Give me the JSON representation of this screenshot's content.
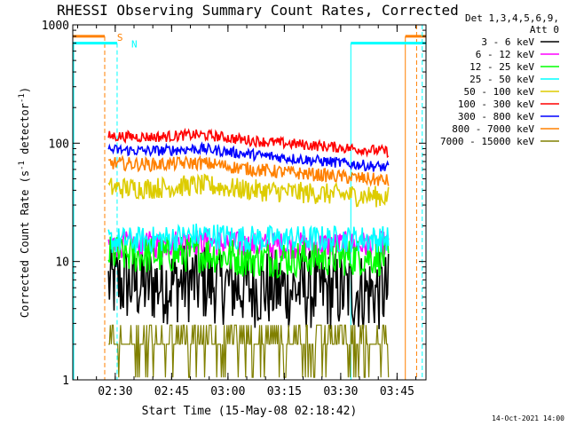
{
  "chart_data": {
    "type": "line",
    "title": "RHESSI Observing Summary Count Rates, Corrected",
    "xlabel": "Start Time (15-May-08 02:18:42)",
    "ylabel_main": "Corrected Count Rate (s",
    "ylabel_sup1": "-1",
    "ylabel_mid": " detector",
    "ylabel_sup2": "-1",
    "ylabel_end": ")",
    "y_scale": "log",
    "ylim": [
      1,
      1000
    ],
    "xlim_minutes": [
      0,
      94
    ],
    "y_ticks": [
      {
        "value": 1,
        "label": "1"
      },
      {
        "value": 10,
        "label": "10"
      },
      {
        "value": 100,
        "label": "100"
      },
      {
        "value": 1000,
        "label": "1000"
      }
    ],
    "x_ticks": [
      {
        "minutes": 11.3,
        "label": "02:30"
      },
      {
        "minutes": 26.3,
        "label": "02:45"
      },
      {
        "minutes": 41.3,
        "label": "03:00"
      },
      {
        "minutes": 56.3,
        "label": "03:15"
      },
      {
        "minutes": 71.3,
        "label": "03:30"
      },
      {
        "minutes": 86.3,
        "label": "03:45"
      }
    ],
    "legend": {
      "header": [
        "Det 1,3,4,5,6,9,",
        "Att 0"
      ],
      "position": "top-right"
    },
    "data_window_minutes": [
      9.5,
      84.0
    ],
    "series": [
      {
        "name": "3 - 6 keV",
        "color": "#000000",
        "start": 6.5,
        "mid": 6.0,
        "end": 5.5,
        "noise": 0.15
      },
      {
        "name": "6 - 12 keV",
        "color": "#ff00ff",
        "start": 14.0,
        "mid": 13.5,
        "end": 14.0,
        "noise": 0.05
      },
      {
        "name": "12 - 25 keV",
        "color": "#00ff00",
        "start": 11.5,
        "mid": 10.5,
        "end": 11.0,
        "noise": 0.07
      },
      {
        "name": "25 - 50 keV",
        "color": "#00ffff",
        "start": 15.0,
        "mid": 15.5,
        "end": 15.5,
        "noise": 0.05
      },
      {
        "name": "50 - 100 keV",
        "color": "#ddcc00",
        "start": 42.0,
        "mid": 40.0,
        "end": 35.0,
        "noise": 0.04
      },
      {
        "name": "100 - 300 keV",
        "color": "#ff0000",
        "start": 115.0,
        "mid": 105.0,
        "end": 85.0,
        "noise": 0.02
      },
      {
        "name": "300 - 800 keV",
        "color": "#0000ff",
        "start": 88.0,
        "mid": 80.0,
        "end": 62.0,
        "noise": 0.02
      },
      {
        "name": "800 - 7000 keV",
        "color": "#ff8000",
        "start": 68.0,
        "mid": 60.0,
        "end": 48.0,
        "noise": 0.025
      },
      {
        "name": "7000 - 15000 keV",
        "color": "#808000",
        "start": 2.0,
        "mid": 2.0,
        "end": 2.0,
        "noise": 0.0
      }
    ],
    "markers": [
      {
        "label": "S",
        "color": "#ff8000",
        "minutes": 8.0,
        "style": "dashed",
        "level": 800
      },
      {
        "label": "N",
        "color": "#00ffff",
        "minutes": 11.8,
        "style": "dashed",
        "level": 700
      }
    ],
    "footer_timestamp": "14-Oct-2021 14:00"
  }
}
